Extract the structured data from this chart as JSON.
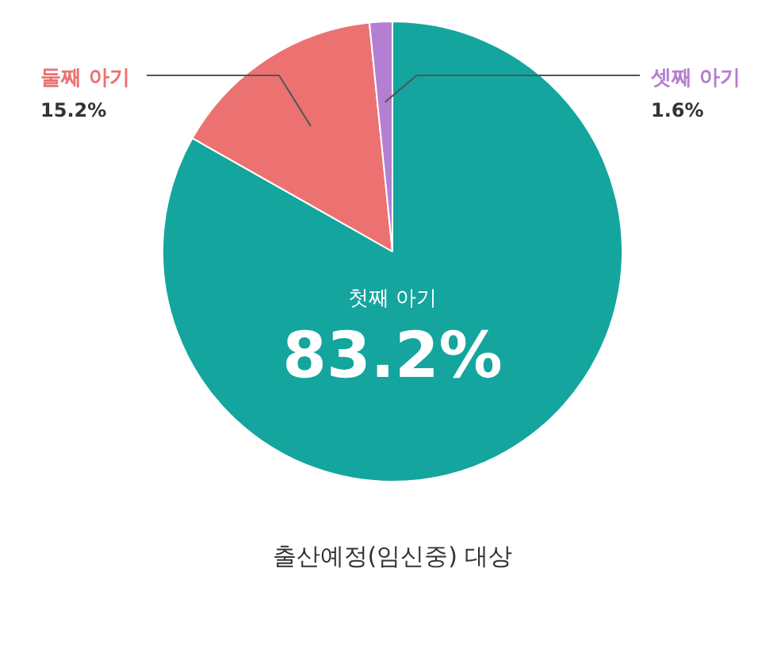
{
  "chart_data": {
    "type": "pie",
    "categories": [
      "첫째 아기",
      "둘째 아기",
      "셋째 아기"
    ],
    "values": [
      83.2,
      15.2,
      1.6
    ],
    "value_labels": [
      "83.2%",
      "15.2%",
      "1.6%"
    ],
    "colors": [
      "#14a59f",
      "#ec7272",
      "#b47fd3"
    ],
    "annotations": [
      "출산예정(임신중) 대상"
    ]
  }
}
